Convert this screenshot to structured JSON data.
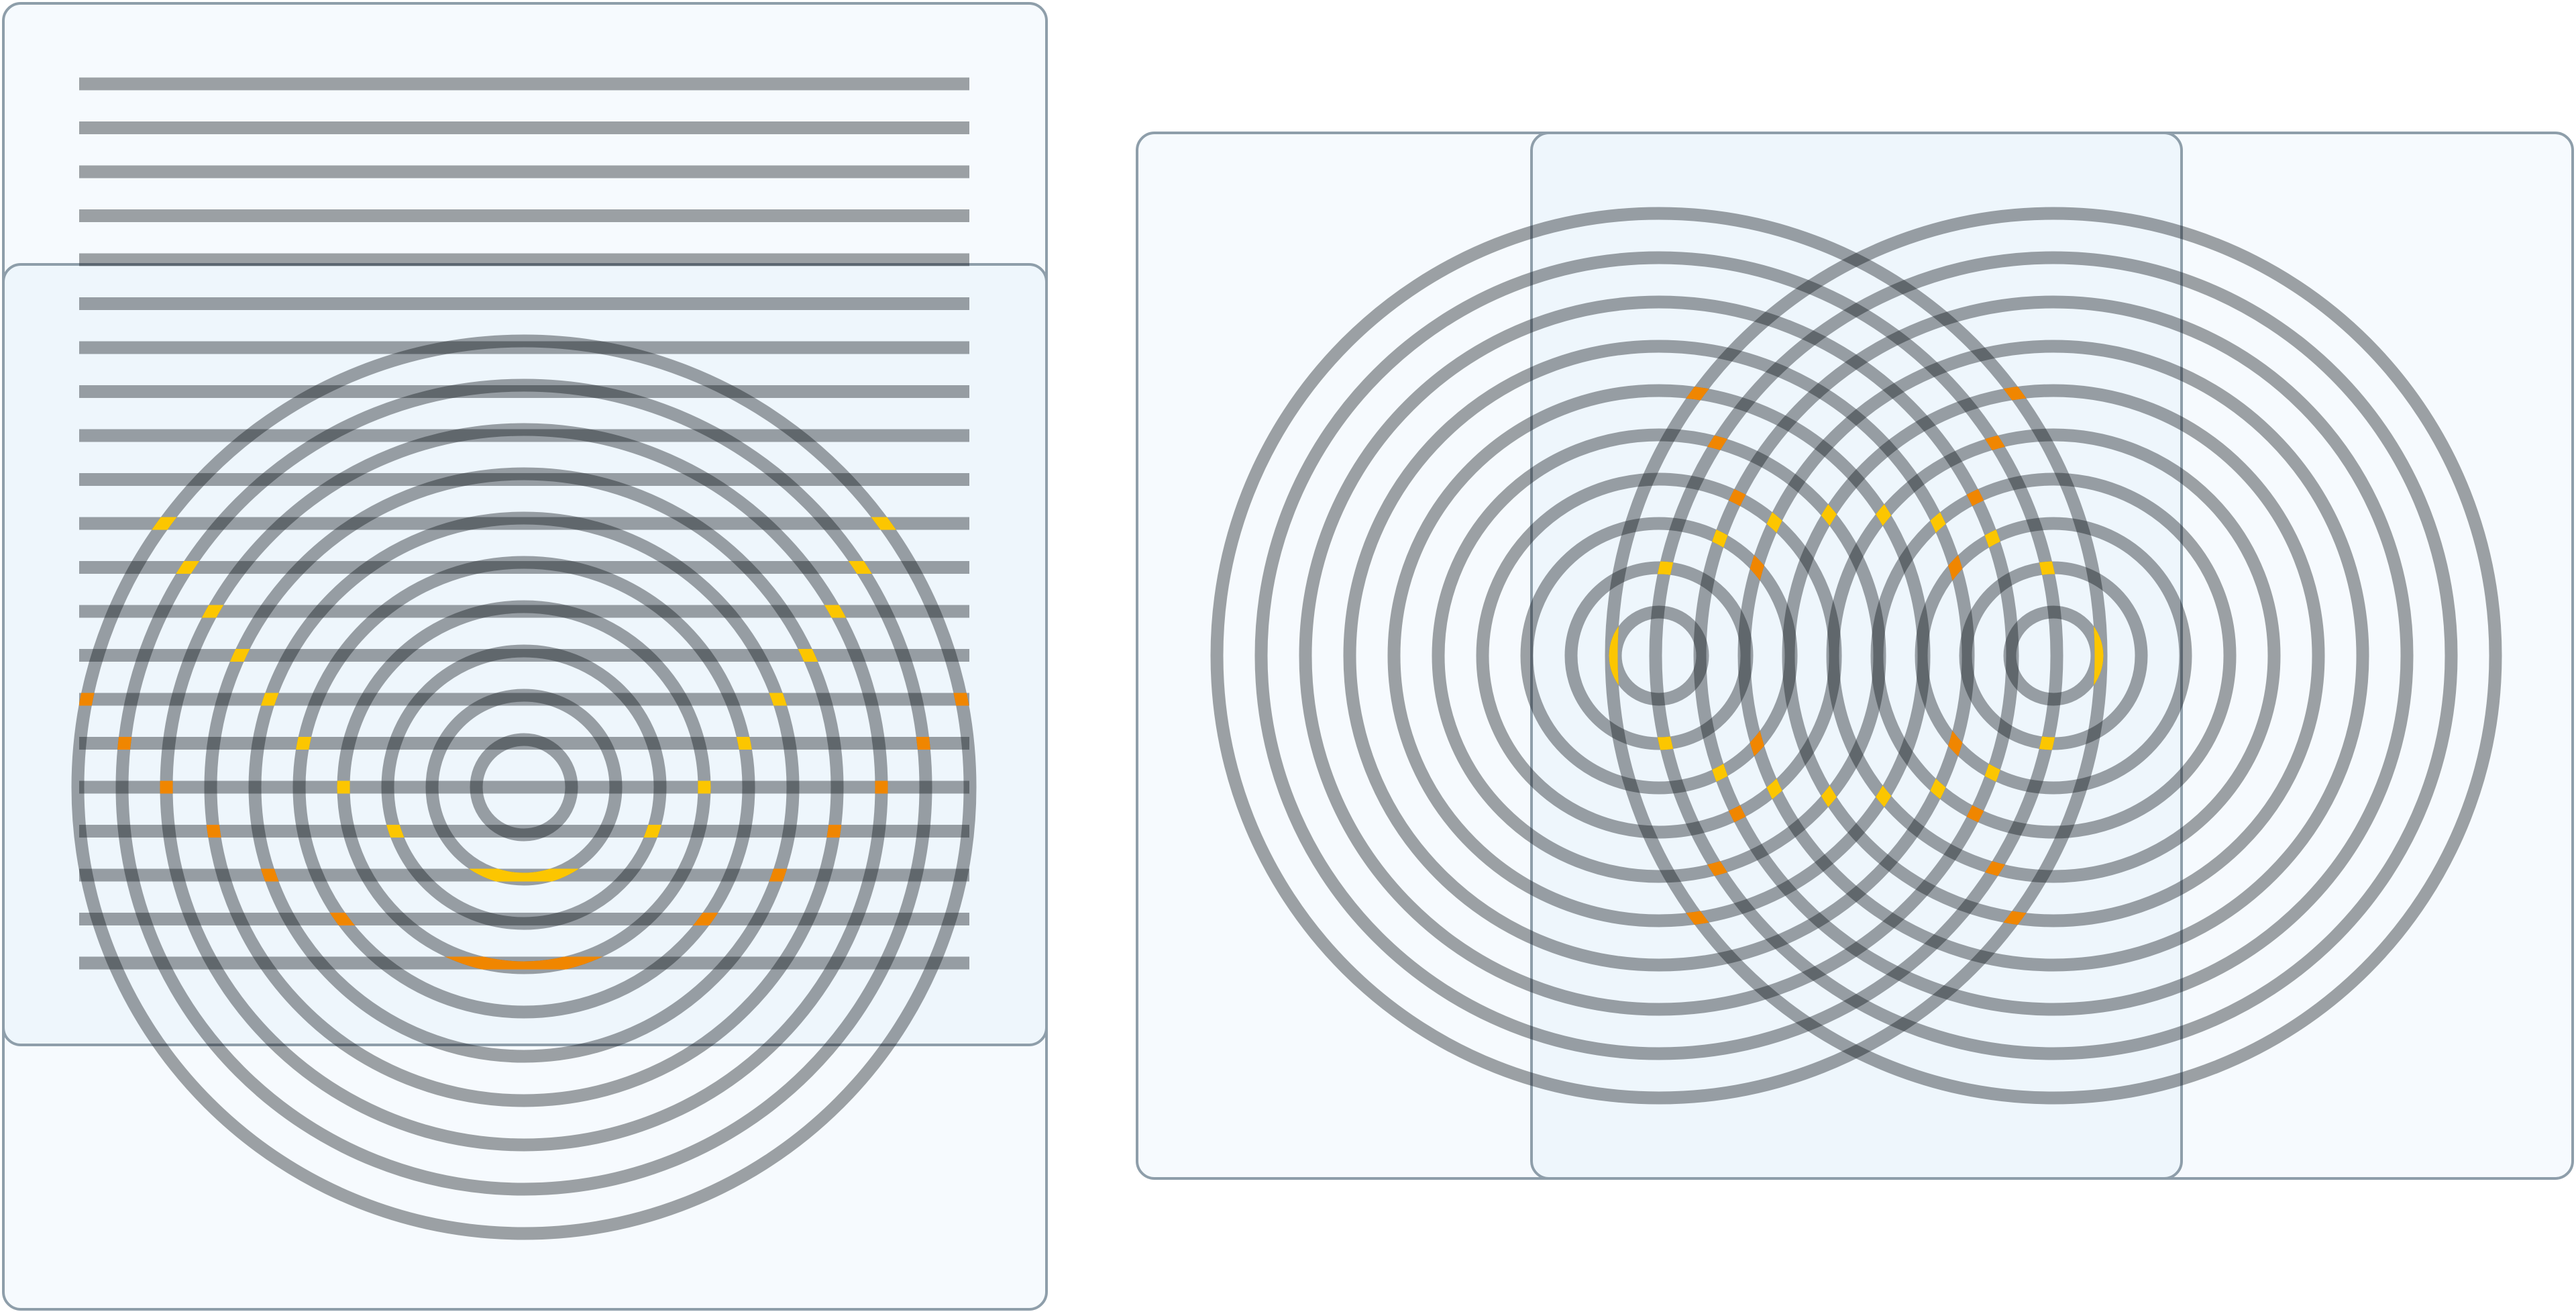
{
  "colors": {
    "background": "#ffffff",
    "panel_outer_fill": "#f6fafe",
    "panel_inner_fill": "#eef6fc",
    "panel_border": "#8e9eaa",
    "ring_stroke": "#0e1218",
    "ring_opacity": 0.39,
    "highlight_yellow": "#fcc600",
    "highlight_orange": "#f08600"
  },
  "left_figure": {
    "line_count": 21,
    "circle_count": 10
  },
  "right_figure": {
    "circle_sets": 2,
    "circles_per_set": 10
  }
}
